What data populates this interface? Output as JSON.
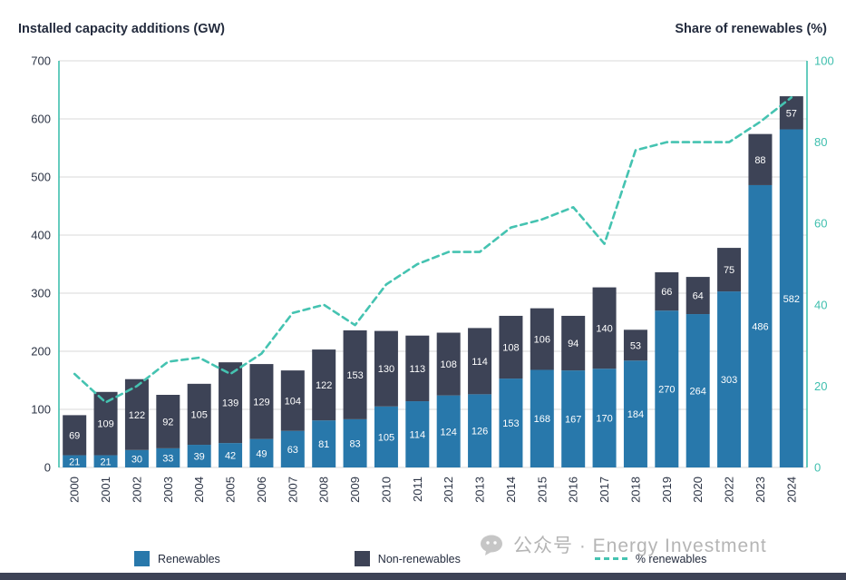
{
  "titles": {
    "left": "Installed capacity additions (GW)",
    "right": "Share of renewables (%)"
  },
  "legend": [
    {
      "label": "Renewables",
      "type": "square",
      "color": "#2878ab"
    },
    {
      "label": "Non-renewables",
      "type": "square",
      "color": "#3d4356"
    },
    {
      "label": "% renewables",
      "type": "dashed-line",
      "color": "#45c3b1"
    }
  ],
  "watermark": {
    "icon": "wechat-icon",
    "text": "公众号 · Energy Investment"
  },
  "colors": {
    "grid": "#d8d8d8",
    "axis_teal": "#3fbfae",
    "text_dark": "#2c3445",
    "bar_label": "#ffffff",
    "watermark": "#b5b5b5",
    "bottom_bar": "#3d4356"
  },
  "chart_data": {
    "type": "bar",
    "stacked": true,
    "grid": "horizontal",
    "legend_position": "bottom",
    "x_label_rotation": 90,
    "categories": [
      "2000",
      "2001",
      "2002",
      "2003",
      "2004",
      "2005",
      "2006",
      "2007",
      "2008",
      "2009",
      "2010",
      "2011",
      "2012",
      "2013",
      "2014",
      "2015",
      "2016",
      "2017",
      "2018",
      "2019",
      "2020",
      "2022",
      "2023",
      "2024"
    ],
    "series": [
      {
        "name": "Renewables",
        "color": "#2878ab",
        "values": [
          21,
          21,
          30,
          33,
          39,
          42,
          49,
          63,
          81,
          83,
          105,
          114,
          124,
          126,
          153,
          168,
          167,
          170,
          184,
          270,
          264,
          303,
          486,
          582
        ]
      },
      {
        "name": "Non-renewables",
        "color": "#3d4356",
        "values": [
          69,
          109,
          122,
          92,
          105,
          139,
          129,
          104,
          122,
          153,
          130,
          113,
          108,
          114,
          108,
          106,
          94,
          140,
          53,
          66,
          64,
          75,
          88,
          57
        ]
      }
    ],
    "line_series": {
      "name": "% renewables",
      "color": "#45c3b1",
      "axis": "right",
      "values": [
        23,
        16,
        20,
        26,
        27,
        23,
        28,
        38,
        40,
        35,
        45,
        50,
        53,
        53,
        59,
        61,
        64,
        55,
        78,
        80,
        80,
        80,
        85,
        91
      ]
    },
    "left_axis": {
      "label": "Installed capacity additions (GW)",
      "min": 0,
      "max": 700,
      "tick_step": 100,
      "ticks": [
        0,
        100,
        200,
        300,
        400,
        500,
        600,
        700
      ]
    },
    "right_axis": {
      "label": "Share of renewables (%)",
      "min": 0,
      "max": 100,
      "tick_step": 20,
      "ticks": [
        0,
        20,
        40,
        60,
        80,
        100
      ]
    }
  }
}
